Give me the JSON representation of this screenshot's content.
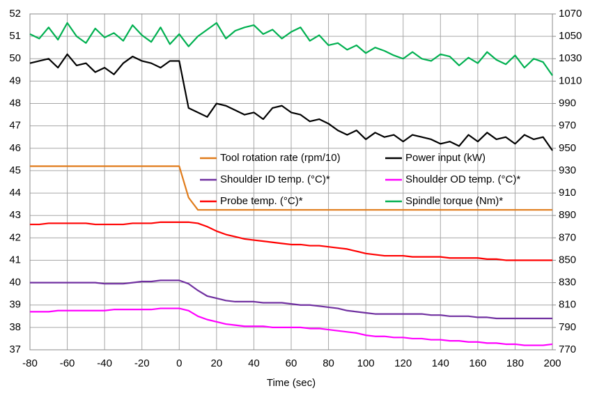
{
  "chart_data": {
    "type": "line",
    "x_label": "Time (sec)",
    "x": [
      -80,
      -75,
      -70,
      -65,
      -60,
      -55,
      -50,
      -45,
      -40,
      -35,
      -30,
      -25,
      -20,
      -15,
      -10,
      -5,
      0,
      5,
      10,
      15,
      20,
      25,
      30,
      35,
      40,
      45,
      50,
      55,
      60,
      65,
      70,
      75,
      80,
      85,
      90,
      95,
      100,
      105,
      110,
      115,
      120,
      125,
      130,
      135,
      140,
      145,
      150,
      155,
      160,
      165,
      170,
      175,
      180,
      185,
      190,
      195,
      200
    ],
    "xlim": [
      -80,
      200
    ],
    "xticks": [
      -80,
      -60,
      -40,
      -20,
      0,
      20,
      40,
      60,
      80,
      100,
      120,
      140,
      160,
      180,
      200
    ],
    "ylim": [
      37,
      52
    ],
    "yticks": [
      37,
      38,
      39,
      40,
      41,
      42,
      43,
      44,
      45,
      46,
      47,
      48,
      49,
      50,
      51,
      52
    ],
    "y2lim": [
      770,
      1070
    ],
    "y2ticks": [
      770,
      790,
      810,
      830,
      850,
      870,
      890,
      910,
      930,
      950,
      970,
      990,
      1010,
      1030,
      1050,
      1070
    ],
    "grid": true,
    "series": [
      {
        "name": "Tool rotation rate (rpm/10)",
        "color": "#e07b1a",
        "axis": "y",
        "values": [
          45.2,
          45.2,
          45.2,
          45.2,
          45.2,
          45.2,
          45.2,
          45.2,
          45.2,
          45.2,
          45.2,
          45.2,
          45.2,
          45.2,
          45.2,
          45.2,
          45.2,
          43.8,
          43.25,
          43.25,
          43.25,
          43.25,
          43.25,
          43.25,
          43.25,
          43.25,
          43.25,
          43.25,
          43.25,
          43.25,
          43.25,
          43.25,
          43.25,
          43.25,
          43.25,
          43.25,
          43.25,
          43.25,
          43.25,
          43.25,
          43.25,
          43.25,
          43.25,
          43.25,
          43.25,
          43.25,
          43.25,
          43.25,
          43.25,
          43.25,
          43.25,
          43.25,
          43.25,
          43.25,
          43.25,
          43.25,
          43.25
        ]
      },
      {
        "name": "Power input (kW)",
        "color": "#000000",
        "axis": "y",
        "values": [
          49.8,
          49.9,
          50.0,
          49.6,
          50.2,
          49.7,
          49.8,
          49.4,
          49.6,
          49.3,
          49.8,
          50.1,
          49.9,
          49.8,
          49.6,
          49.9,
          49.9,
          47.8,
          47.6,
          47.4,
          48.0,
          47.9,
          47.7,
          47.5,
          47.6,
          47.3,
          47.8,
          47.9,
          47.6,
          47.5,
          47.2,
          47.3,
          47.1,
          46.8,
          46.6,
          46.8,
          46.4,
          46.7,
          46.5,
          46.6,
          46.3,
          46.6,
          46.5,
          46.4,
          46.2,
          46.3,
          46.1,
          46.6,
          46.3,
          46.7,
          46.4,
          46.5,
          46.2,
          46.6,
          46.4,
          46.5,
          45.9
        ]
      },
      {
        "name": "Shoulder ID temp. (°C)*",
        "color": "#7030a0",
        "axis": "y2",
        "values": [
          830,
          830,
          830,
          830,
          830,
          830,
          830,
          830,
          829,
          829,
          829,
          830,
          831,
          831,
          832,
          832,
          832,
          829,
          823,
          818,
          816,
          814,
          813,
          813,
          813,
          812,
          812,
          812,
          811,
          810,
          810,
          809,
          808,
          807,
          805,
          804,
          803,
          802,
          802,
          802,
          802,
          802,
          802,
          801,
          801,
          800,
          800,
          800,
          799,
          799,
          798,
          798,
          798,
          798,
          798,
          798,
          798
        ]
      },
      {
        "name": "Shoulder OD temp. (°C)*",
        "color": "#ff00ff",
        "axis": "y2",
        "values": [
          804,
          804,
          804,
          805,
          805,
          805,
          805,
          805,
          805,
          806,
          806,
          806,
          806,
          806,
          807,
          807,
          807,
          805,
          800,
          797,
          795,
          793,
          792,
          791,
          791,
          791,
          790,
          790,
          790,
          790,
          789,
          789,
          788,
          787,
          786,
          785,
          783,
          782,
          782,
          781,
          781,
          780,
          780,
          779,
          779,
          778,
          778,
          777,
          777,
          776,
          776,
          775,
          775,
          774,
          774,
          774,
          775
        ]
      },
      {
        "name": "Probe temp. (°C)*",
        "color": "#ff0000",
        "axis": "y2",
        "values": [
          882,
          882,
          883,
          883,
          883,
          883,
          883,
          882,
          882,
          882,
          882,
          883,
          883,
          883,
          884,
          884,
          884,
          884,
          883,
          880,
          876,
          873,
          871,
          869,
          868,
          867,
          866,
          865,
          864,
          864,
          863,
          863,
          862,
          861,
          860,
          858,
          856,
          855,
          854,
          854,
          854,
          853,
          853,
          853,
          853,
          852,
          852,
          852,
          852,
          851,
          851,
          850,
          850,
          850,
          850,
          850,
          850
        ]
      },
      {
        "name": "Spindle torque (Nm)*",
        "color": "#00b050",
        "axis": "y2",
        "values": [
          1052,
          1048,
          1058,
          1047,
          1062,
          1050,
          1044,
          1057,
          1049,
          1053,
          1046,
          1060,
          1051,
          1045,
          1058,
          1043,
          1052,
          1041,
          1050,
          1056,
          1062,
          1048,
          1055,
          1058,
          1060,
          1052,
          1056,
          1048,
          1054,
          1058,
          1046,
          1051,
          1042,
          1044,
          1038,
          1042,
          1035,
          1040,
          1037,
          1033,
          1030,
          1036,
          1030,
          1028,
          1034,
          1032,
          1024,
          1031,
          1026,
          1036,
          1029,
          1025,
          1033,
          1022,
          1030,
          1027,
          1015
        ]
      }
    ]
  }
}
